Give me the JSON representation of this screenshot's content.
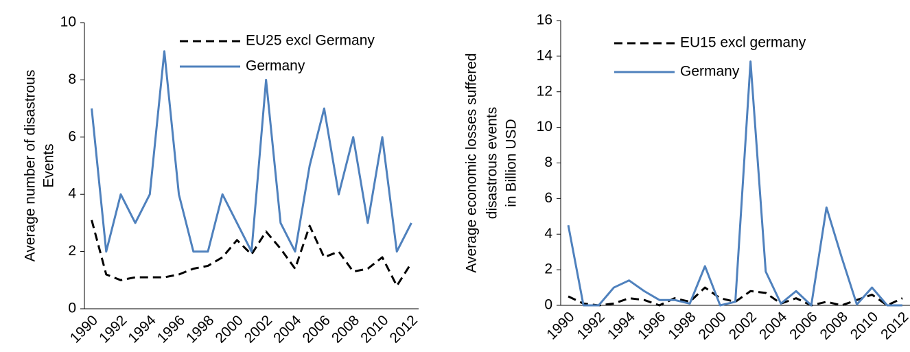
{
  "chart_data": [
    {
      "type": "line",
      "ylabel": [
        "Average number of disastrous",
        "Events"
      ],
      "categories": [
        "1990",
        null,
        "1992",
        null,
        "1994",
        null,
        "1996",
        null,
        "1998",
        null,
        "2000",
        null,
        "2002",
        null,
        "2004",
        null,
        "2006",
        null,
        "2008",
        null,
        "2010",
        null,
        "2012"
      ],
      "series": [
        {
          "name": "EU25 excl Germany",
          "color": "#000000",
          "dashed": true,
          "values": [
            3.1,
            1.2,
            1.0,
            1.1,
            1.1,
            1.1,
            1.2,
            1.4,
            1.5,
            1.8,
            2.4,
            1.9,
            2.7,
            2.1,
            1.4,
            2.9,
            1.8,
            2.0,
            1.3,
            1.4,
            1.8,
            0.8,
            1.6
          ]
        },
        {
          "name": "Germany",
          "color": "#4f81bd",
          "dashed": false,
          "values": [
            7,
            2,
            4,
            3,
            4,
            9,
            4,
            2,
            2,
            4,
            3,
            2,
            8,
            3,
            2,
            5,
            7,
            4,
            6,
            3,
            6,
            2,
            3
          ]
        }
      ],
      "ylim": [
        0,
        10
      ],
      "yticks": [
        0,
        2,
        4,
        6,
        8,
        10
      ],
      "legend": "upper right"
    },
    {
      "type": "line",
      "ylabel": [
        "Average economic losses suffered",
        "disastrous events",
        "in Billion USD"
      ],
      "categories": [
        "1990",
        null,
        "1992",
        null,
        "1994",
        null,
        "1996",
        null,
        "1998",
        null,
        "2000",
        null,
        "2002",
        null,
        "2004",
        null,
        "2006",
        null,
        "2008",
        null,
        "2010",
        null,
        "2012"
      ],
      "series": [
        {
          "name": "EU15 excl germany",
          "color": "#000000",
          "dashed": true,
          "values": [
            0.5,
            0.1,
            0,
            0.1,
            0.4,
            0.3,
            0,
            0.4,
            0.2,
            1.0,
            0.4,
            0.2,
            0.8,
            0.7,
            0.1,
            0.4,
            0,
            0.2,
            0,
            0.3,
            0.6,
            0,
            0.4
          ]
        },
        {
          "name": "Germany",
          "color": "#4f81bd",
          "dashed": false,
          "values": [
            4.5,
            0,
            0,
            1.0,
            1.4,
            0.8,
            0.3,
            0.3,
            0.1,
            2.2,
            0,
            0.2,
            13.7,
            1.9,
            0.1,
            0.8,
            0,
            5.5,
            2.7,
            0.05,
            1.0,
            0,
            0
          ]
        }
      ],
      "ylim": [
        0,
        16
      ],
      "yticks": [
        0,
        2,
        4,
        6,
        8,
        10,
        12,
        14,
        16
      ],
      "legend": "upper left"
    }
  ]
}
